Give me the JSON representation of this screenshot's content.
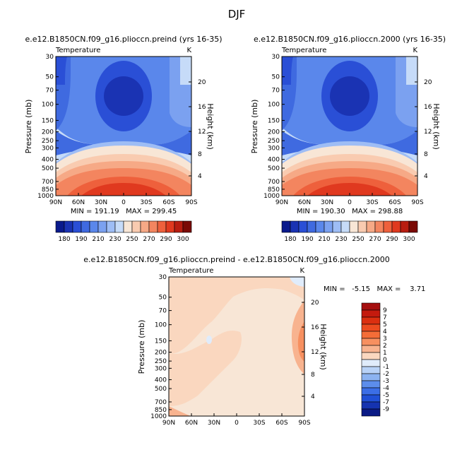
{
  "page_title": "DJF",
  "chart_data": [
    {
      "type": "filled-contour",
      "panel": "left",
      "title": "e.e12.B1850CN.f09_g16.plioccn.preind (yrs 16-35)",
      "variable": "Temperature",
      "units": "K",
      "xlabel": "",
      "ylabel": "Pressure (mb)",
      "y2label": "Height (km)",
      "x_ticks": [
        "90N",
        "60N",
        "30N",
        "0",
        "30S",
        "60S",
        "90S"
      ],
      "x_values": [
        90,
        60,
        30,
        0,
        -30,
        -60,
        -90
      ],
      "y_ticks": [
        "30",
        "50",
        "70",
        "100",
        "150",
        "200",
        "250",
        "300",
        "400",
        "500",
        "700",
        "850",
        "1000"
      ],
      "y_values": [
        30,
        50,
        70,
        100,
        150,
        200,
        250,
        300,
        400,
        500,
        700,
        850,
        1000
      ],
      "y2_ticks": [
        "20",
        "16",
        "12",
        "8",
        "4"
      ],
      "ylim": [
        1000,
        30
      ],
      "stats": "MIN = 191.19   MAX = 299.45",
      "min": 191.19,
      "max": 299.45,
      "colorbar": {
        "orientation": "horizontal",
        "labels": [
          "180",
          "190",
          "210",
          "230",
          "250",
          "270",
          "290",
          "300"
        ],
        "levels": [
          180,
          185,
          190,
          200,
          210,
          220,
          230,
          240,
          250,
          260,
          270,
          280,
          290,
          295,
          300
        ],
        "colors": [
          "#0a1a8c",
          "#1a33b3",
          "#2a4fd6",
          "#3f6ae0",
          "#5a87eb",
          "#7ba1f0",
          "#9ebdf5",
          "#c6dbf8",
          "#f8e6d6",
          "#f9cbb0",
          "#f6a986",
          "#f3855f",
          "#ee603c",
          "#e0391f",
          "#b81d10",
          "#7a0a05"
        ]
      }
    },
    {
      "type": "filled-contour",
      "panel": "right",
      "title": "e.e12.B1850CN.f09_g16.plioccn.2000 (yrs 16-35)",
      "variable": "Temperature",
      "units": "K",
      "ylabel": "Pressure (mb)",
      "y2label": "Height (km)",
      "x_ticks": [
        "90N",
        "60N",
        "30N",
        "0",
        "30S",
        "60S",
        "90S"
      ],
      "y_ticks": [
        "30",
        "50",
        "70",
        "100",
        "150",
        "200",
        "250",
        "300",
        "400",
        "500",
        "700",
        "850",
        "1000"
      ],
      "y2_ticks": [
        "20",
        "16",
        "12",
        "8",
        "4"
      ],
      "stats": "MIN = 190.30   MAX = 298.88",
      "min": 190.3,
      "max": 298.88,
      "colorbar": {
        "orientation": "horizontal",
        "labels": [
          "180",
          "190",
          "210",
          "230",
          "250",
          "270",
          "290",
          "300"
        ]
      }
    },
    {
      "type": "filled-contour",
      "panel": "bottom",
      "title": "e.e12.B1850CN.f09_g16.plioccn.preind - e.e12.B1850CN.f09_g16.plioccn.2000",
      "variable": "Temperature",
      "units": "K",
      "ylabel": "Pressure (mb)",
      "y2label": "Height (km)",
      "x_ticks": [
        "90N",
        "60N",
        "30N",
        "0",
        "30S",
        "60S",
        "90S"
      ],
      "y_ticks": [
        "30",
        "50",
        "70",
        "100",
        "150",
        "200",
        "250",
        "300",
        "400",
        "500",
        "700",
        "850",
        "1000"
      ],
      "y2_ticks": [
        "20",
        "16",
        "12",
        "8",
        "4"
      ],
      "stats": "MIN =   -5.15   MAX =    3.71",
      "min": -5.15,
      "max": 3.71,
      "colorbar": {
        "orientation": "vertical",
        "labels": [
          "9",
          "7",
          "5",
          "4",
          "3",
          "2",
          "1",
          "0",
          "-1",
          "-2",
          "-3",
          "-4",
          "-5",
          "-7",
          "-9"
        ],
        "colors": [
          "#a50f0f",
          "#c41a0e",
          "#db2f10",
          "#ec4b1f",
          "#f46d37",
          "#f79060",
          "#f8b38f",
          "#fad7bf",
          "#e0ecfb",
          "#b8d2f7",
          "#8cb3f1",
          "#5c8deb",
          "#3b6ee6",
          "#2050d6",
          "#1533b0",
          "#0a1a85"
        ]
      }
    }
  ]
}
